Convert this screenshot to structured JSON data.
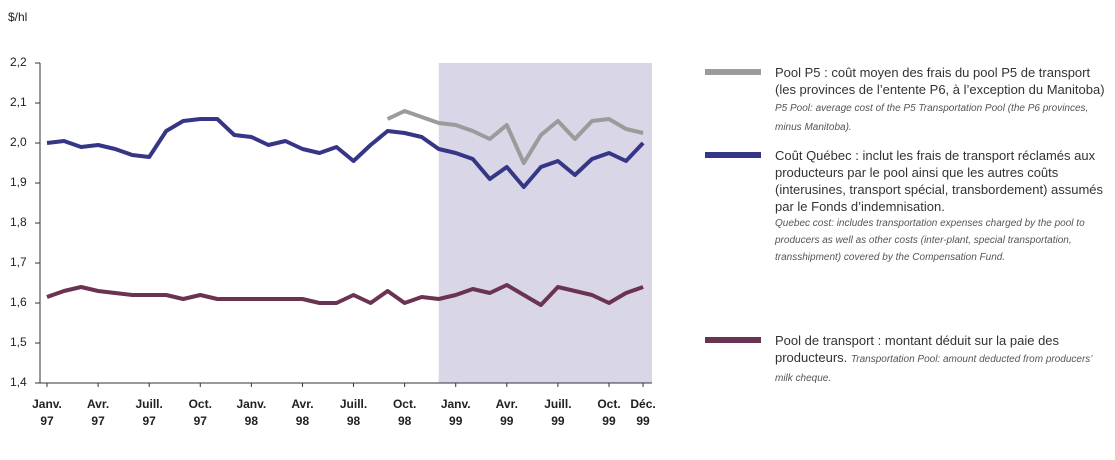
{
  "chart_data": {
    "type": "line",
    "y_label": "$/hl",
    "categories": [
      [
        "Janv.",
        "97"
      ],
      null,
      null,
      [
        "Avr.",
        "97"
      ],
      null,
      null,
      [
        "Juill.",
        "97"
      ],
      null,
      null,
      [
        "Oct.",
        "97"
      ],
      null,
      null,
      [
        "Janv.",
        "98"
      ],
      null,
      null,
      [
        "Avr.",
        "98"
      ],
      null,
      null,
      [
        "Juill.",
        "98"
      ],
      null,
      null,
      [
        "Oct.",
        "98"
      ],
      null,
      null,
      [
        "Janv.",
        "99"
      ],
      null,
      null,
      [
        "Avr.",
        "99"
      ],
      null,
      null,
      [
        "Juill.",
        "99"
      ],
      null,
      null,
      [
        "Oct.",
        "99"
      ],
      null,
      [
        "Déc.",
        "99"
      ]
    ],
    "series": [
      {
        "name": "Pool P5",
        "color": "#9b9b9b",
        "description": ": coût moyen des frais du pool P5 de transport (les provinces de l’entente P6, à l’exception du Manitoba)",
        "description_en": "P5 Pool: average cost of the P5 Transportation Pool (the P6 provinces, minus Manitoba).",
        "values": [
          null,
          null,
          null,
          null,
          null,
          null,
          null,
          null,
          null,
          null,
          null,
          null,
          null,
          null,
          null,
          null,
          null,
          null,
          null,
          null,
          2.06,
          2.08,
          2.065,
          2.05,
          2.045,
          2.03,
          2.01,
          2.045,
          1.95,
          2.02,
          2.055,
          2.01,
          2.055,
          2.06,
          2.035,
          2.025
        ]
      },
      {
        "name": "Coût Québec",
        "color": "#363687",
        "description": ": inclut les frais de transport réclamés aux producteurs par le pool ainsi que les autres coûts (interusines, transport spécial, transbordement) assumés par le Fonds d’indemnisation.",
        "description_en": "Quebec cost: includes transportation expenses charged by the pool to producers as well as other costs (inter-plant, special transportation, transshipment) covered by the Compensation Fund.",
        "values": [
          2.0,
          2.005,
          1.99,
          1.995,
          1.985,
          1.97,
          1.965,
          2.03,
          2.055,
          2.06,
          2.06,
          2.02,
          2.015,
          1.995,
          2.005,
          1.985,
          1.975,
          1.99,
          1.955,
          1.995,
          2.03,
          2.025,
          2.015,
          1.985,
          1.975,
          1.96,
          1.91,
          1.94,
          1.89,
          1.94,
          1.955,
          1.92,
          1.96,
          1.975,
          1.955,
          2.0
        ]
      },
      {
        "name": "Pool de transport",
        "color": "#6b3352",
        "description": ": montant déduit sur la paie des producteurs.",
        "description_en": "Transportation Pool: amount deducted from producers’ milk cheque.",
        "values": [
          1.615,
          1.63,
          1.64,
          1.63,
          1.625,
          1.62,
          1.62,
          1.62,
          1.61,
          1.62,
          1.61,
          1.61,
          1.61,
          1.61,
          1.61,
          1.61,
          1.6,
          1.6,
          1.62,
          1.6,
          1.63,
          1.6,
          1.615,
          1.61,
          1.62,
          1.635,
          1.625,
          1.645,
          1.62,
          1.595,
          1.64,
          1.63,
          1.62,
          1.6,
          1.625,
          1.64
        ]
      }
    ],
    "ylim": [
      1.4,
      2.2
    ],
    "yticks": [
      {
        "value": 1.4,
        "label": "1,4"
      },
      {
        "value": 1.5,
        "label": "1,5"
      },
      {
        "value": 1.6,
        "label": "1,6"
      },
      {
        "value": 1.7,
        "label": "1,7"
      },
      {
        "value": 1.8,
        "label": "1,8"
      },
      {
        "value": 1.9,
        "label": "1,9"
      },
      {
        "value": 2.0,
        "label": "2,0"
      },
      {
        "value": 2.1,
        "label": "2,1"
      },
      {
        "value": 2.2,
        "label": "2,2"
      }
    ],
    "grid": false
  }
}
